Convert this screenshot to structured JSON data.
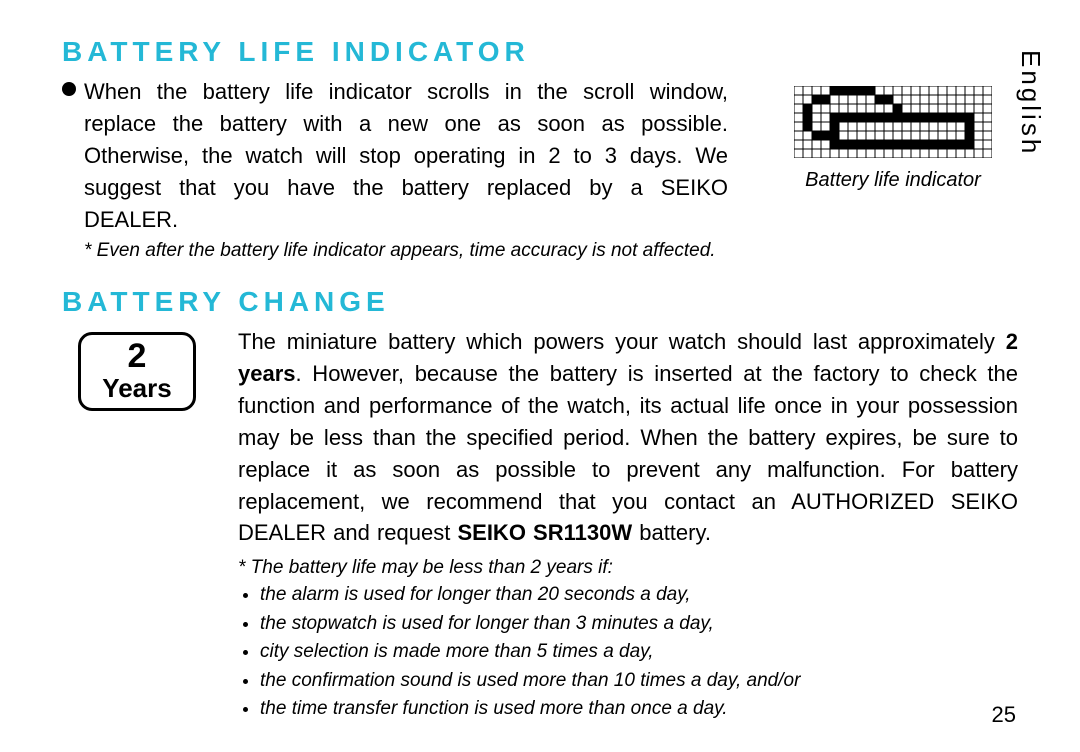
{
  "language": "English",
  "page_number": "25",
  "colors": {
    "heading": "#24b8d6",
    "text": "#000000",
    "background": "#ffffff"
  },
  "section1": {
    "heading": "BATTERY LIFE INDICATOR",
    "body": "When the battery life indicator scrolls in the scroll window, replace the battery with a new one as soon as possible. Otherwise, the watch will stop operating in 2 to 3 days.  We suggest that you have the battery replaced by a SEIKO DEALER.",
    "footnote": "*  Even after the  battery life indicator  appears, time accuracy is not affected.",
    "indicator_label": "Battery life indicator"
  },
  "indicator_grid": {
    "cols": 22,
    "rows": 8,
    "cell": 9,
    "stroke": "#000000",
    "fill": "#000000",
    "filled_cells": [
      [
        0,
        4
      ],
      [
        0,
        5
      ],
      [
        0,
        6
      ],
      [
        0,
        7
      ],
      [
        0,
        8
      ],
      [
        1,
        2
      ],
      [
        1,
        3
      ],
      [
        1,
        9
      ],
      [
        1,
        10
      ],
      [
        2,
        1
      ],
      [
        2,
        11
      ],
      [
        3,
        1
      ],
      [
        3,
        4
      ],
      [
        3,
        5
      ],
      [
        3,
        6
      ],
      [
        3,
        7
      ],
      [
        3,
        8
      ],
      [
        3,
        9
      ],
      [
        3,
        10
      ],
      [
        3,
        11
      ],
      [
        3,
        12
      ],
      [
        3,
        13
      ],
      [
        3,
        14
      ],
      [
        3,
        15
      ],
      [
        3,
        16
      ],
      [
        3,
        17
      ],
      [
        3,
        18
      ],
      [
        3,
        19
      ],
      [
        4,
        1
      ],
      [
        4,
        4
      ],
      [
        4,
        19
      ],
      [
        5,
        2
      ],
      [
        5,
        3
      ],
      [
        5,
        4
      ],
      [
        5,
        19
      ],
      [
        6,
        4
      ],
      [
        6,
        5
      ],
      [
        6,
        6
      ],
      [
        6,
        7
      ],
      [
        6,
        8
      ],
      [
        6,
        9
      ],
      [
        6,
        10
      ],
      [
        6,
        11
      ],
      [
        6,
        12
      ],
      [
        6,
        13
      ],
      [
        6,
        14
      ],
      [
        6,
        15
      ],
      [
        6,
        16
      ],
      [
        6,
        17
      ],
      [
        6,
        18
      ],
      [
        6,
        19
      ]
    ]
  },
  "section2": {
    "heading": "BATTERY CHANGE",
    "years_num": "2",
    "years_word": "Years",
    "body_pre": "The miniature battery which powers your watch should last approximately ",
    "body_bold1": "2 years",
    "body_mid": ".  However, because the battery is inserted at the factory to check the function and performance of the watch, its actual life once in your possession may be less than the specified period.  When the battery expires, be sure to replace it as soon as possible to prevent any malfunction.  For battery replacement, we recommend that you contact an AUTHORIZED SEIKO DEALER and request ",
    "body_bold2": "SEIKO SR1130W",
    "body_after": " battery.",
    "notes_lead": "*  The battery life may be less than 2 years if:",
    "notes": [
      "the alarm is used for longer than 20 seconds a day,",
      "the stopwatch is used for longer than 3 minutes a day,",
      "city selection is made more than 5 times a day,",
      "the confirmation sound is used more than 10 times a day, and/or",
      "the time transfer function is used more than once a day."
    ]
  }
}
